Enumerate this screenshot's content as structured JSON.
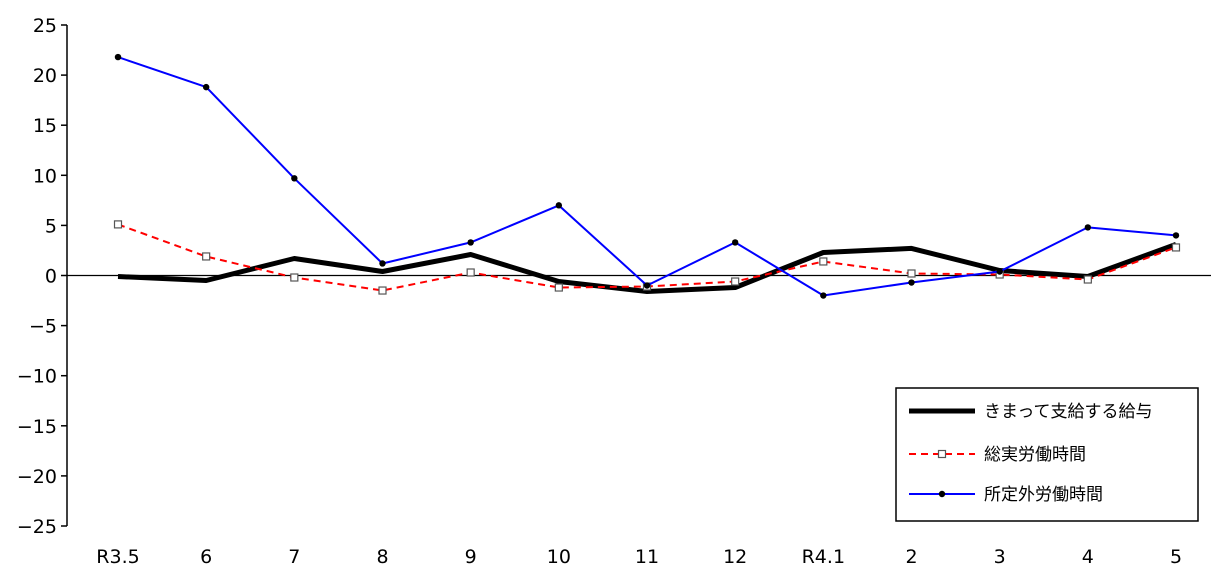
{
  "chart_data": {
    "type": "line",
    "title": "",
    "xlabel": "",
    "ylabel": "",
    "categories": [
      "R3.5",
      "6",
      "7",
      "8",
      "9",
      "10",
      "11",
      "12",
      "R4.1",
      "2",
      "3",
      "4",
      "5"
    ],
    "yticks": [
      "25",
      "20",
      "15",
      "10",
      "5",
      "0",
      "−5",
      "−10",
      "−15",
      "−20",
      "−25"
    ],
    "ylim": [
      -25,
      25
    ],
    "grid": false,
    "legend_position": "bottom-right",
    "series": [
      {
        "name": "きまって支給する給与",
        "color": "#000000",
        "style": "solid-thick",
        "values": [
          -0.1,
          -0.5,
          1.7,
          0.4,
          2.1,
          -0.6,
          -1.6,
          -1.2,
          2.3,
          2.7,
          0.5,
          -0.1,
          3.1
        ]
      },
      {
        "name": "総実労働時間",
        "color": "#ff0000",
        "style": "dashed-square-markers",
        "values": [
          5.1,
          1.9,
          -0.2,
          -1.5,
          0.3,
          -1.2,
          -1.1,
          -0.6,
          1.4,
          0.2,
          0.1,
          -0.4,
          2.8
        ]
      },
      {
        "name": "所定外労働時間",
        "color": "#0000ff",
        "style": "solid-dot-markers",
        "values": [
          21.8,
          18.8,
          9.7,
          1.2,
          3.3,
          7.0,
          -1.0,
          3.3,
          -2.0,
          -0.7,
          0.4,
          4.8,
          4.0
        ]
      }
    ]
  }
}
